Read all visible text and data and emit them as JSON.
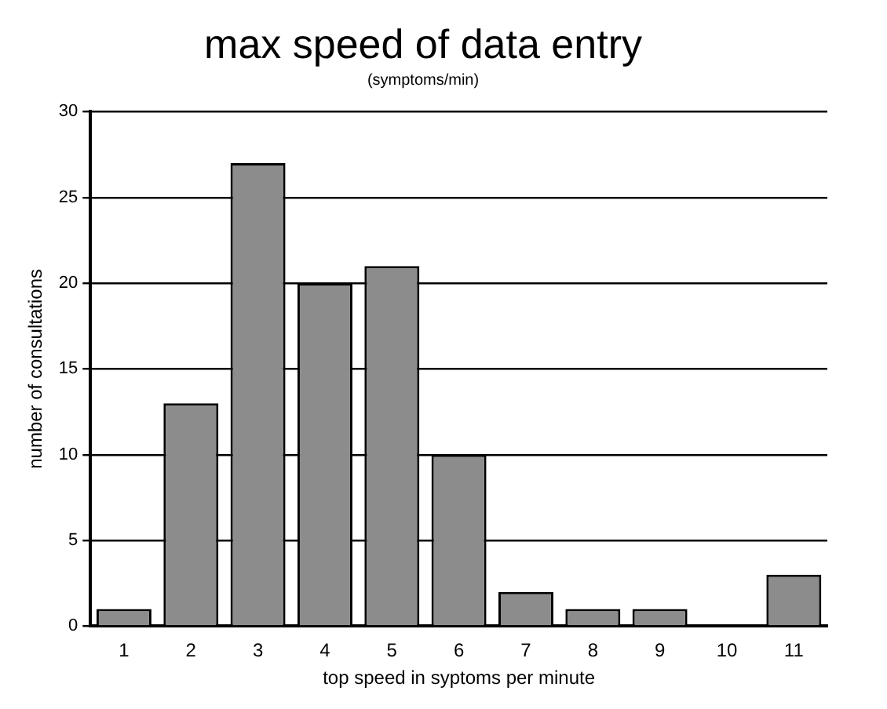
{
  "chart_data": {
    "type": "bar",
    "title": "max speed of data entry",
    "subtitle": "(symptoms/min)",
    "xlabel": "top speed in syptoms per minute",
    "ylabel": "number of consultations",
    "categories": [
      "1",
      "2",
      "3",
      "4",
      "5",
      "6",
      "7",
      "8",
      "9",
      "10",
      "11"
    ],
    "values": [
      1,
      13,
      27,
      20,
      21,
      10,
      2,
      1,
      1,
      0,
      3
    ],
    "color": "#8c8c8c",
    "ylim": [
      0,
      30
    ],
    "yticks": [
      0,
      5,
      10,
      15,
      20,
      25,
      30
    ],
    "grid": "y",
    "legend": false
  }
}
